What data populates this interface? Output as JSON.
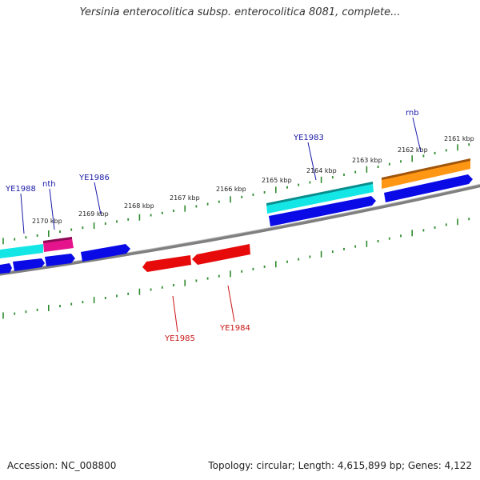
{
  "title": "Yersinia enterocolitica subsp. enterocolitica 8081, complete...",
  "accession_text": "Accession: NC_008800",
  "summary_text": "Topology: circular; Length: 4,615,899 bp; Genes: 4,122",
  "colors": {
    "backbone": "#7f7f7f",
    "tick": "#2e8b2e",
    "forward_label": "#1a1aa8",
    "reverse_label": "#c81414",
    "cds_blue": "#0a0ae6",
    "cds_cyan": "#14e6e6",
    "cds_magenta": "#e6148c",
    "cds_orange": "#ff9614",
    "cds_red": "#e60a0a"
  },
  "ruler_labels": [
    "2161 kbp",
    "2162 kbp",
    "2163 kbp",
    "2164 kbp",
    "2165 kbp",
    "2166 kbp",
    "2167 kbp",
    "2168 kbp",
    "2169 kbp",
    "2170 kbp"
  ],
  "gene_labels": [
    {
      "text": "rnb",
      "strand": "forward"
    },
    {
      "text": "YE1983",
      "strand": "forward"
    },
    {
      "text": "YE1986",
      "strand": "forward"
    },
    {
      "text": "nth",
      "strand": "forward"
    },
    {
      "text": "YE1988",
      "strand": "forward"
    },
    {
      "text": "YE1984",
      "strand": "reverse"
    },
    {
      "text": "YE1985",
      "strand": "reverse"
    }
  ]
}
